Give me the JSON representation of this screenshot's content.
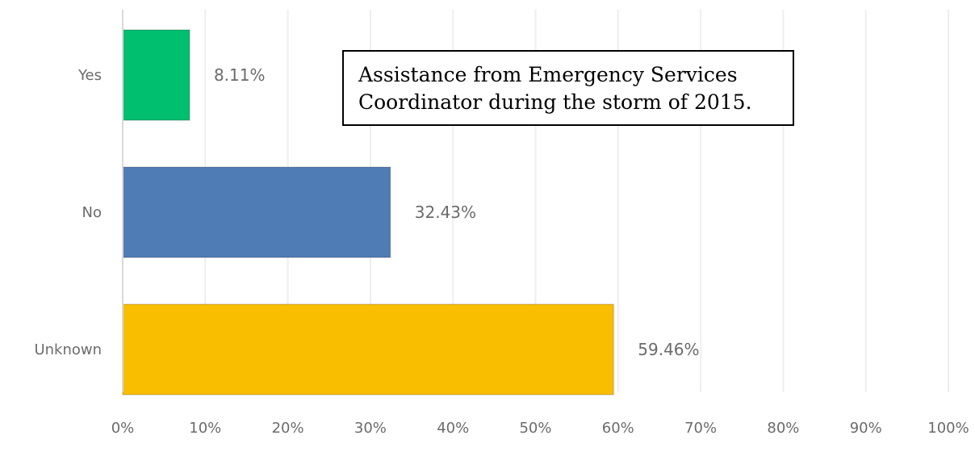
{
  "chart_data": {
    "type": "bar",
    "orientation": "horizontal",
    "categories": [
      "Yes",
      "No",
      "Unknown"
    ],
    "values": [
      8.11,
      32.43,
      59.46
    ],
    "data_labels": [
      "8.11%",
      "32.43%",
      "59.46%"
    ],
    "colors": [
      "#00bf6f",
      "#507cb6",
      "#f9be00"
    ],
    "xlim": [
      0,
      100
    ],
    "x_ticks": [
      "0%",
      "10%",
      "20%",
      "30%",
      "40%",
      "50%",
      "60%",
      "70%",
      "80%",
      "90%",
      "100%"
    ],
    "grid": true,
    "annotation": {
      "line1": "Assistance from Emergency Services",
      "line2": "Coordinator during the storm of 2015."
    }
  }
}
